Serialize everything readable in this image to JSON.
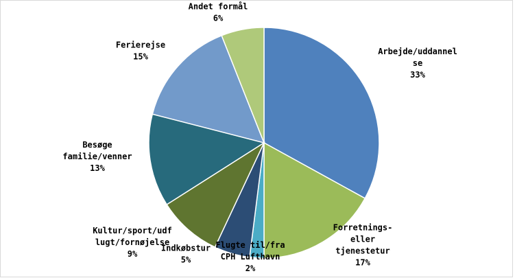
{
  "chart_data": {
    "type": "pie",
    "title": "",
    "slices": [
      {
        "name": "Arbejde/uddannelse",
        "label_lines": [
          "Arbejde/uddannel",
          "se"
        ],
        "value": 33,
        "value_label": "33%",
        "color": "#4f81bd"
      },
      {
        "name": "Forretnings-eller tjenestetur",
        "label_lines": [
          "Forretnings-",
          "eller",
          "tjenestetur"
        ],
        "value": 17,
        "value_label": "17%",
        "color": "#9bbb59"
      },
      {
        "name": "Flugte til/fra CPH Lufthavn",
        "label_lines": [
          "Flugte til/fra",
          "CPH Lufthavn"
        ],
        "value": 2,
        "value_label": "2%",
        "color": "#4bacc6"
      },
      {
        "name": "Indkøbstur",
        "label_lines": [
          "Indkøbstur"
        ],
        "value": 5,
        "value_label": "5%",
        "color": "#2c4d75"
      },
      {
        "name": "Kultur/sport/udflugt/fornøjelse",
        "label_lines": [
          "Kultur/sport/udf",
          "lugt/fornøjelse"
        ],
        "value": 9,
        "value_label": "9%",
        "color": "#5f7530"
      },
      {
        "name": "Besøge familie/venner",
        "label_lines": [
          "Besøge",
          "familie/venner"
        ],
        "value": 13,
        "value_label": "13%",
        "color": "#276a7c"
      },
      {
        "name": "Ferierejse",
        "label_lines": [
          "Ferierejse"
        ],
        "value": 15,
        "value_label": "15%",
        "color": "#729aca"
      },
      {
        "name": "Andet formål",
        "label_lines": [
          "Andet formål"
        ],
        "value": 6,
        "value_label": "6%",
        "color": "#afc97a"
      }
    ]
  }
}
